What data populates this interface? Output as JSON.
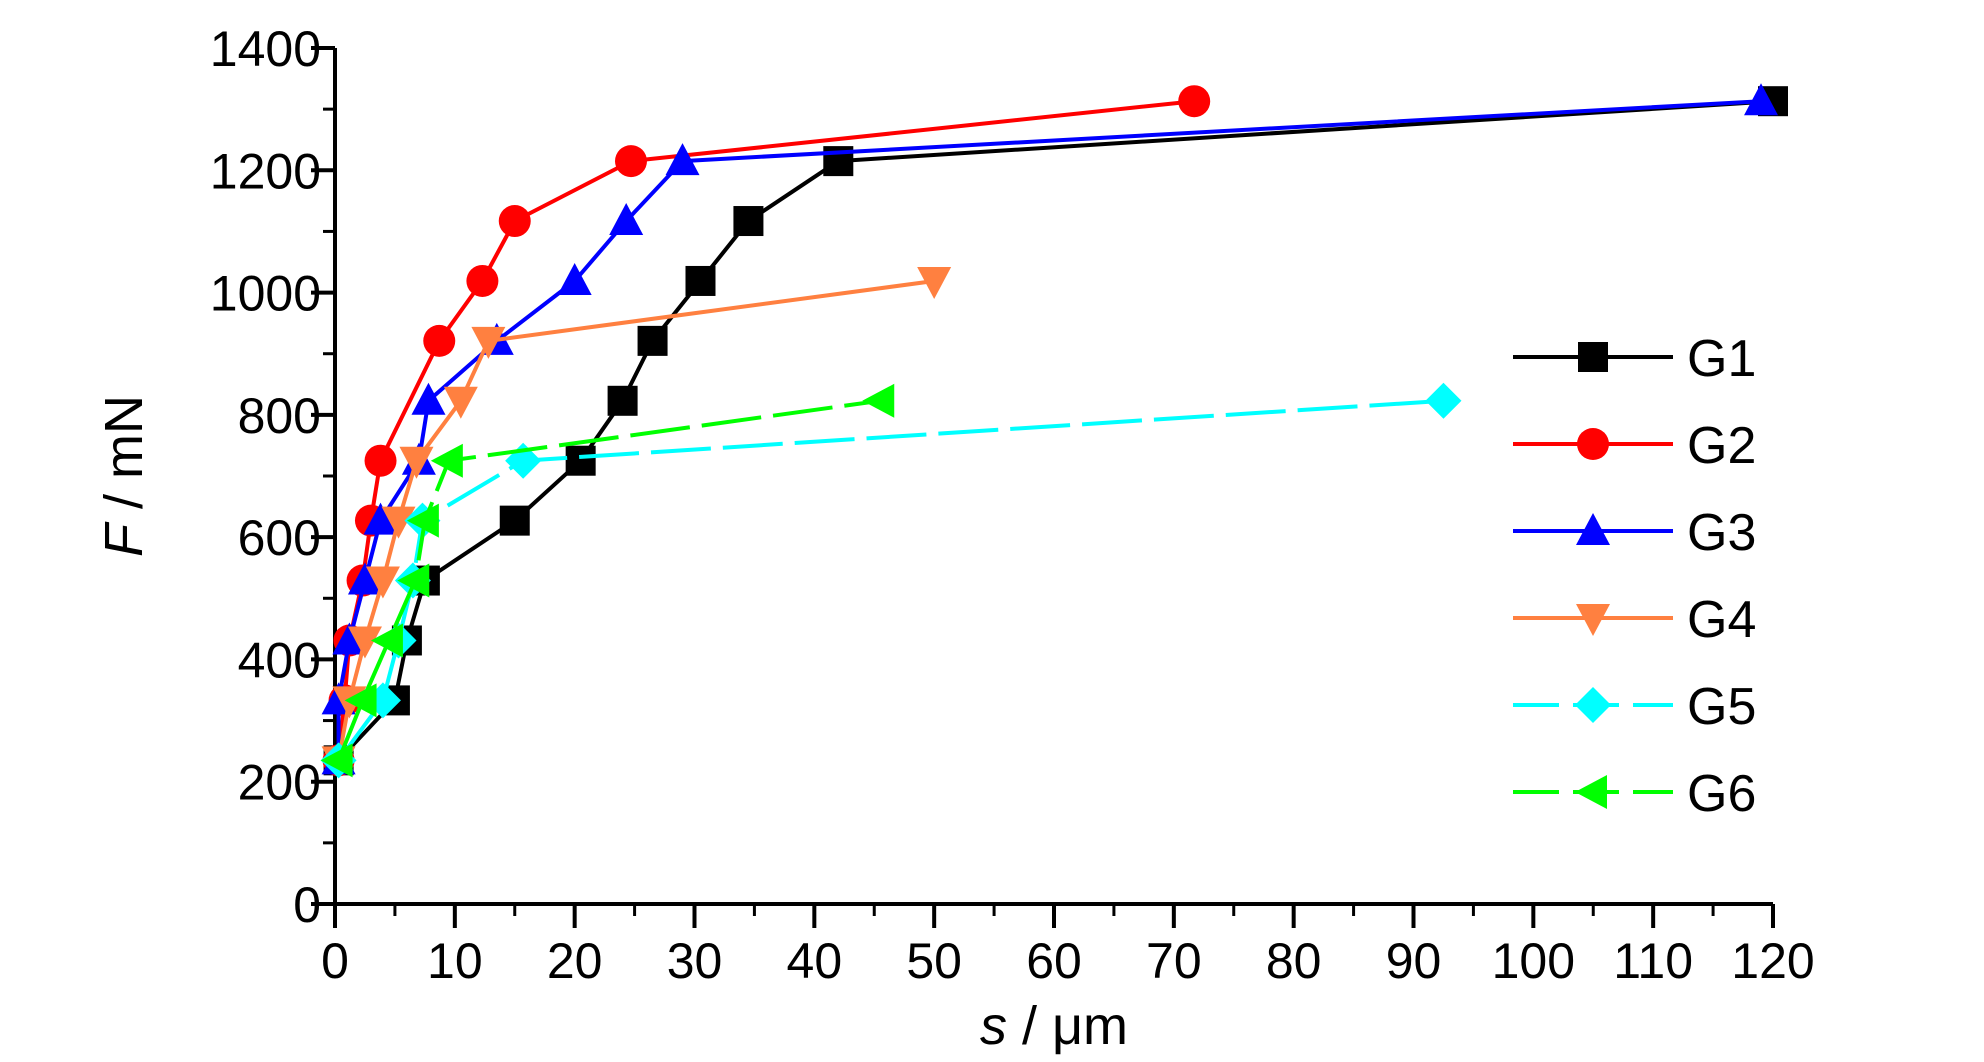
{
  "chart_data": {
    "type": "line",
    "title": "",
    "xlabel_var": "s",
    "xlabel_unit": " / μm",
    "ylabel_var": "F",
    "ylabel_unit": " / mN",
    "xlim": [
      0,
      120
    ],
    "ylim": [
      0,
      1400
    ],
    "xticks": [
      0,
      10,
      20,
      30,
      40,
      50,
      60,
      70,
      80,
      90,
      100,
      110,
      120
    ],
    "yticks": [
      0,
      200,
      400,
      600,
      800,
      1000,
      1200,
      1400
    ],
    "grid": false,
    "legend_position": "right",
    "series": [
      {
        "name": "G1",
        "color": "#000000",
        "marker": "square",
        "dash": false,
        "points": [
          [
            0.3,
            235
          ],
          [
            5,
            333
          ],
          [
            6,
            431
          ],
          [
            7.5,
            529
          ],
          [
            15,
            627
          ],
          [
            20.5,
            725
          ],
          [
            24,
            823
          ],
          [
            26.5,
            921
          ],
          [
            30.5,
            1019
          ],
          [
            34.5,
            1117
          ],
          [
            42,
            1215
          ],
          [
            120,
            1313
          ]
        ]
      },
      {
        "name": "G2",
        "color": "#ff0000",
        "marker": "circle",
        "dash": false,
        "points": [
          [
            0.3,
            235
          ],
          [
            0.8,
            333
          ],
          [
            1.2,
            431
          ],
          [
            2.3,
            529
          ],
          [
            3,
            627
          ],
          [
            3.8,
            725
          ],
          [
            8.7,
            921
          ],
          [
            12.3,
            1019
          ],
          [
            15,
            1117
          ],
          [
            24.7,
            1215
          ],
          [
            71.7,
            1313
          ]
        ]
      },
      {
        "name": "G3",
        "color": "#0000ff",
        "marker": "triangle-up",
        "dash": false,
        "points": [
          [
            0.3,
            235
          ],
          [
            0.3,
            333
          ],
          [
            1.2,
            431
          ],
          [
            2.5,
            529
          ],
          [
            3.8,
            627
          ],
          [
            7,
            725
          ],
          [
            7.8,
            823
          ],
          [
            13.5,
            921
          ],
          [
            20,
            1019
          ],
          [
            24.3,
            1117
          ],
          [
            29,
            1215
          ],
          [
            119,
            1313
          ]
        ]
      },
      {
        "name": "G4",
        "color": "#ff8040",
        "marker": "triangle-down",
        "dash": false,
        "points": [
          [
            0.3,
            235
          ],
          [
            1.2,
            333
          ],
          [
            2.5,
            431
          ],
          [
            4,
            529
          ],
          [
            5.3,
            627
          ],
          [
            6.8,
            725
          ],
          [
            10.5,
            823
          ],
          [
            12.8,
            921
          ],
          [
            50,
            1019
          ]
        ]
      },
      {
        "name": "G5",
        "color": "#00ffff",
        "marker": "diamond",
        "dash": true,
        "points": [
          [
            0.3,
            235
          ],
          [
            4,
            333
          ],
          [
            5.3,
            431
          ],
          [
            6.5,
            529
          ],
          [
            7.3,
            627
          ],
          [
            15.7,
            725
          ],
          [
            92.5,
            823
          ]
        ]
      },
      {
        "name": "G6",
        "color": "#00ff00",
        "marker": "triangle-left",
        "dash": true,
        "points": [
          [
            0.3,
            235
          ],
          [
            2.3,
            333
          ],
          [
            4.5,
            431
          ],
          [
            6.7,
            529
          ],
          [
            7.5,
            627
          ],
          [
            9.5,
            725
          ],
          [
            45.5,
            823
          ]
        ]
      }
    ]
  }
}
